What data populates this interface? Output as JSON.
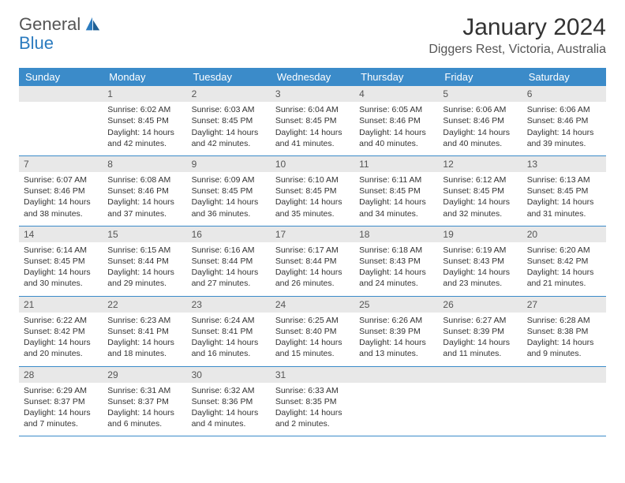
{
  "logo": {
    "text1": "General",
    "text2": "Blue"
  },
  "title": "January 2024",
  "location": "Diggers Rest, Victoria, Australia",
  "colors": {
    "header_bg": "#3b8bc9",
    "header_text": "#ffffff",
    "daynum_bg": "#e8e8e8",
    "border": "#3b8bc9",
    "logo_blue": "#2b7bbf",
    "text": "#333333"
  },
  "weekdays": [
    "Sunday",
    "Monday",
    "Tuesday",
    "Wednesday",
    "Thursday",
    "Friday",
    "Saturday"
  ],
  "labels": {
    "sunrise": "Sunrise:",
    "sunset": "Sunset:",
    "daylight": "Daylight:"
  },
  "first_weekday_index": 1,
  "days": [
    {
      "n": 1,
      "sunrise": "6:02 AM",
      "sunset": "8:45 PM",
      "daylight": "14 hours and 42 minutes."
    },
    {
      "n": 2,
      "sunrise": "6:03 AM",
      "sunset": "8:45 PM",
      "daylight": "14 hours and 42 minutes."
    },
    {
      "n": 3,
      "sunrise": "6:04 AM",
      "sunset": "8:45 PM",
      "daylight": "14 hours and 41 minutes."
    },
    {
      "n": 4,
      "sunrise": "6:05 AM",
      "sunset": "8:46 PM",
      "daylight": "14 hours and 40 minutes."
    },
    {
      "n": 5,
      "sunrise": "6:06 AM",
      "sunset": "8:46 PM",
      "daylight": "14 hours and 40 minutes."
    },
    {
      "n": 6,
      "sunrise": "6:06 AM",
      "sunset": "8:46 PM",
      "daylight": "14 hours and 39 minutes."
    },
    {
      "n": 7,
      "sunrise": "6:07 AM",
      "sunset": "8:46 PM",
      "daylight": "14 hours and 38 minutes."
    },
    {
      "n": 8,
      "sunrise": "6:08 AM",
      "sunset": "8:46 PM",
      "daylight": "14 hours and 37 minutes."
    },
    {
      "n": 9,
      "sunrise": "6:09 AM",
      "sunset": "8:45 PM",
      "daylight": "14 hours and 36 minutes."
    },
    {
      "n": 10,
      "sunrise": "6:10 AM",
      "sunset": "8:45 PM",
      "daylight": "14 hours and 35 minutes."
    },
    {
      "n": 11,
      "sunrise": "6:11 AM",
      "sunset": "8:45 PM",
      "daylight": "14 hours and 34 minutes."
    },
    {
      "n": 12,
      "sunrise": "6:12 AM",
      "sunset": "8:45 PM",
      "daylight": "14 hours and 32 minutes."
    },
    {
      "n": 13,
      "sunrise": "6:13 AM",
      "sunset": "8:45 PM",
      "daylight": "14 hours and 31 minutes."
    },
    {
      "n": 14,
      "sunrise": "6:14 AM",
      "sunset": "8:45 PM",
      "daylight": "14 hours and 30 minutes."
    },
    {
      "n": 15,
      "sunrise": "6:15 AM",
      "sunset": "8:44 PM",
      "daylight": "14 hours and 29 minutes."
    },
    {
      "n": 16,
      "sunrise": "6:16 AM",
      "sunset": "8:44 PM",
      "daylight": "14 hours and 27 minutes."
    },
    {
      "n": 17,
      "sunrise": "6:17 AM",
      "sunset": "8:44 PM",
      "daylight": "14 hours and 26 minutes."
    },
    {
      "n": 18,
      "sunrise": "6:18 AM",
      "sunset": "8:43 PM",
      "daylight": "14 hours and 24 minutes."
    },
    {
      "n": 19,
      "sunrise": "6:19 AM",
      "sunset": "8:43 PM",
      "daylight": "14 hours and 23 minutes."
    },
    {
      "n": 20,
      "sunrise": "6:20 AM",
      "sunset": "8:42 PM",
      "daylight": "14 hours and 21 minutes."
    },
    {
      "n": 21,
      "sunrise": "6:22 AM",
      "sunset": "8:42 PM",
      "daylight": "14 hours and 20 minutes."
    },
    {
      "n": 22,
      "sunrise": "6:23 AM",
      "sunset": "8:41 PM",
      "daylight": "14 hours and 18 minutes."
    },
    {
      "n": 23,
      "sunrise": "6:24 AM",
      "sunset": "8:41 PM",
      "daylight": "14 hours and 16 minutes."
    },
    {
      "n": 24,
      "sunrise": "6:25 AM",
      "sunset": "8:40 PM",
      "daylight": "14 hours and 15 minutes."
    },
    {
      "n": 25,
      "sunrise": "6:26 AM",
      "sunset": "8:39 PM",
      "daylight": "14 hours and 13 minutes."
    },
    {
      "n": 26,
      "sunrise": "6:27 AM",
      "sunset": "8:39 PM",
      "daylight": "14 hours and 11 minutes."
    },
    {
      "n": 27,
      "sunrise": "6:28 AM",
      "sunset": "8:38 PM",
      "daylight": "14 hours and 9 minutes."
    },
    {
      "n": 28,
      "sunrise": "6:29 AM",
      "sunset": "8:37 PM",
      "daylight": "14 hours and 7 minutes."
    },
    {
      "n": 29,
      "sunrise": "6:31 AM",
      "sunset": "8:37 PM",
      "daylight": "14 hours and 6 minutes."
    },
    {
      "n": 30,
      "sunrise": "6:32 AM",
      "sunset": "8:36 PM",
      "daylight": "14 hours and 4 minutes."
    },
    {
      "n": 31,
      "sunrise": "6:33 AM",
      "sunset": "8:35 PM",
      "daylight": "14 hours and 2 minutes."
    }
  ]
}
